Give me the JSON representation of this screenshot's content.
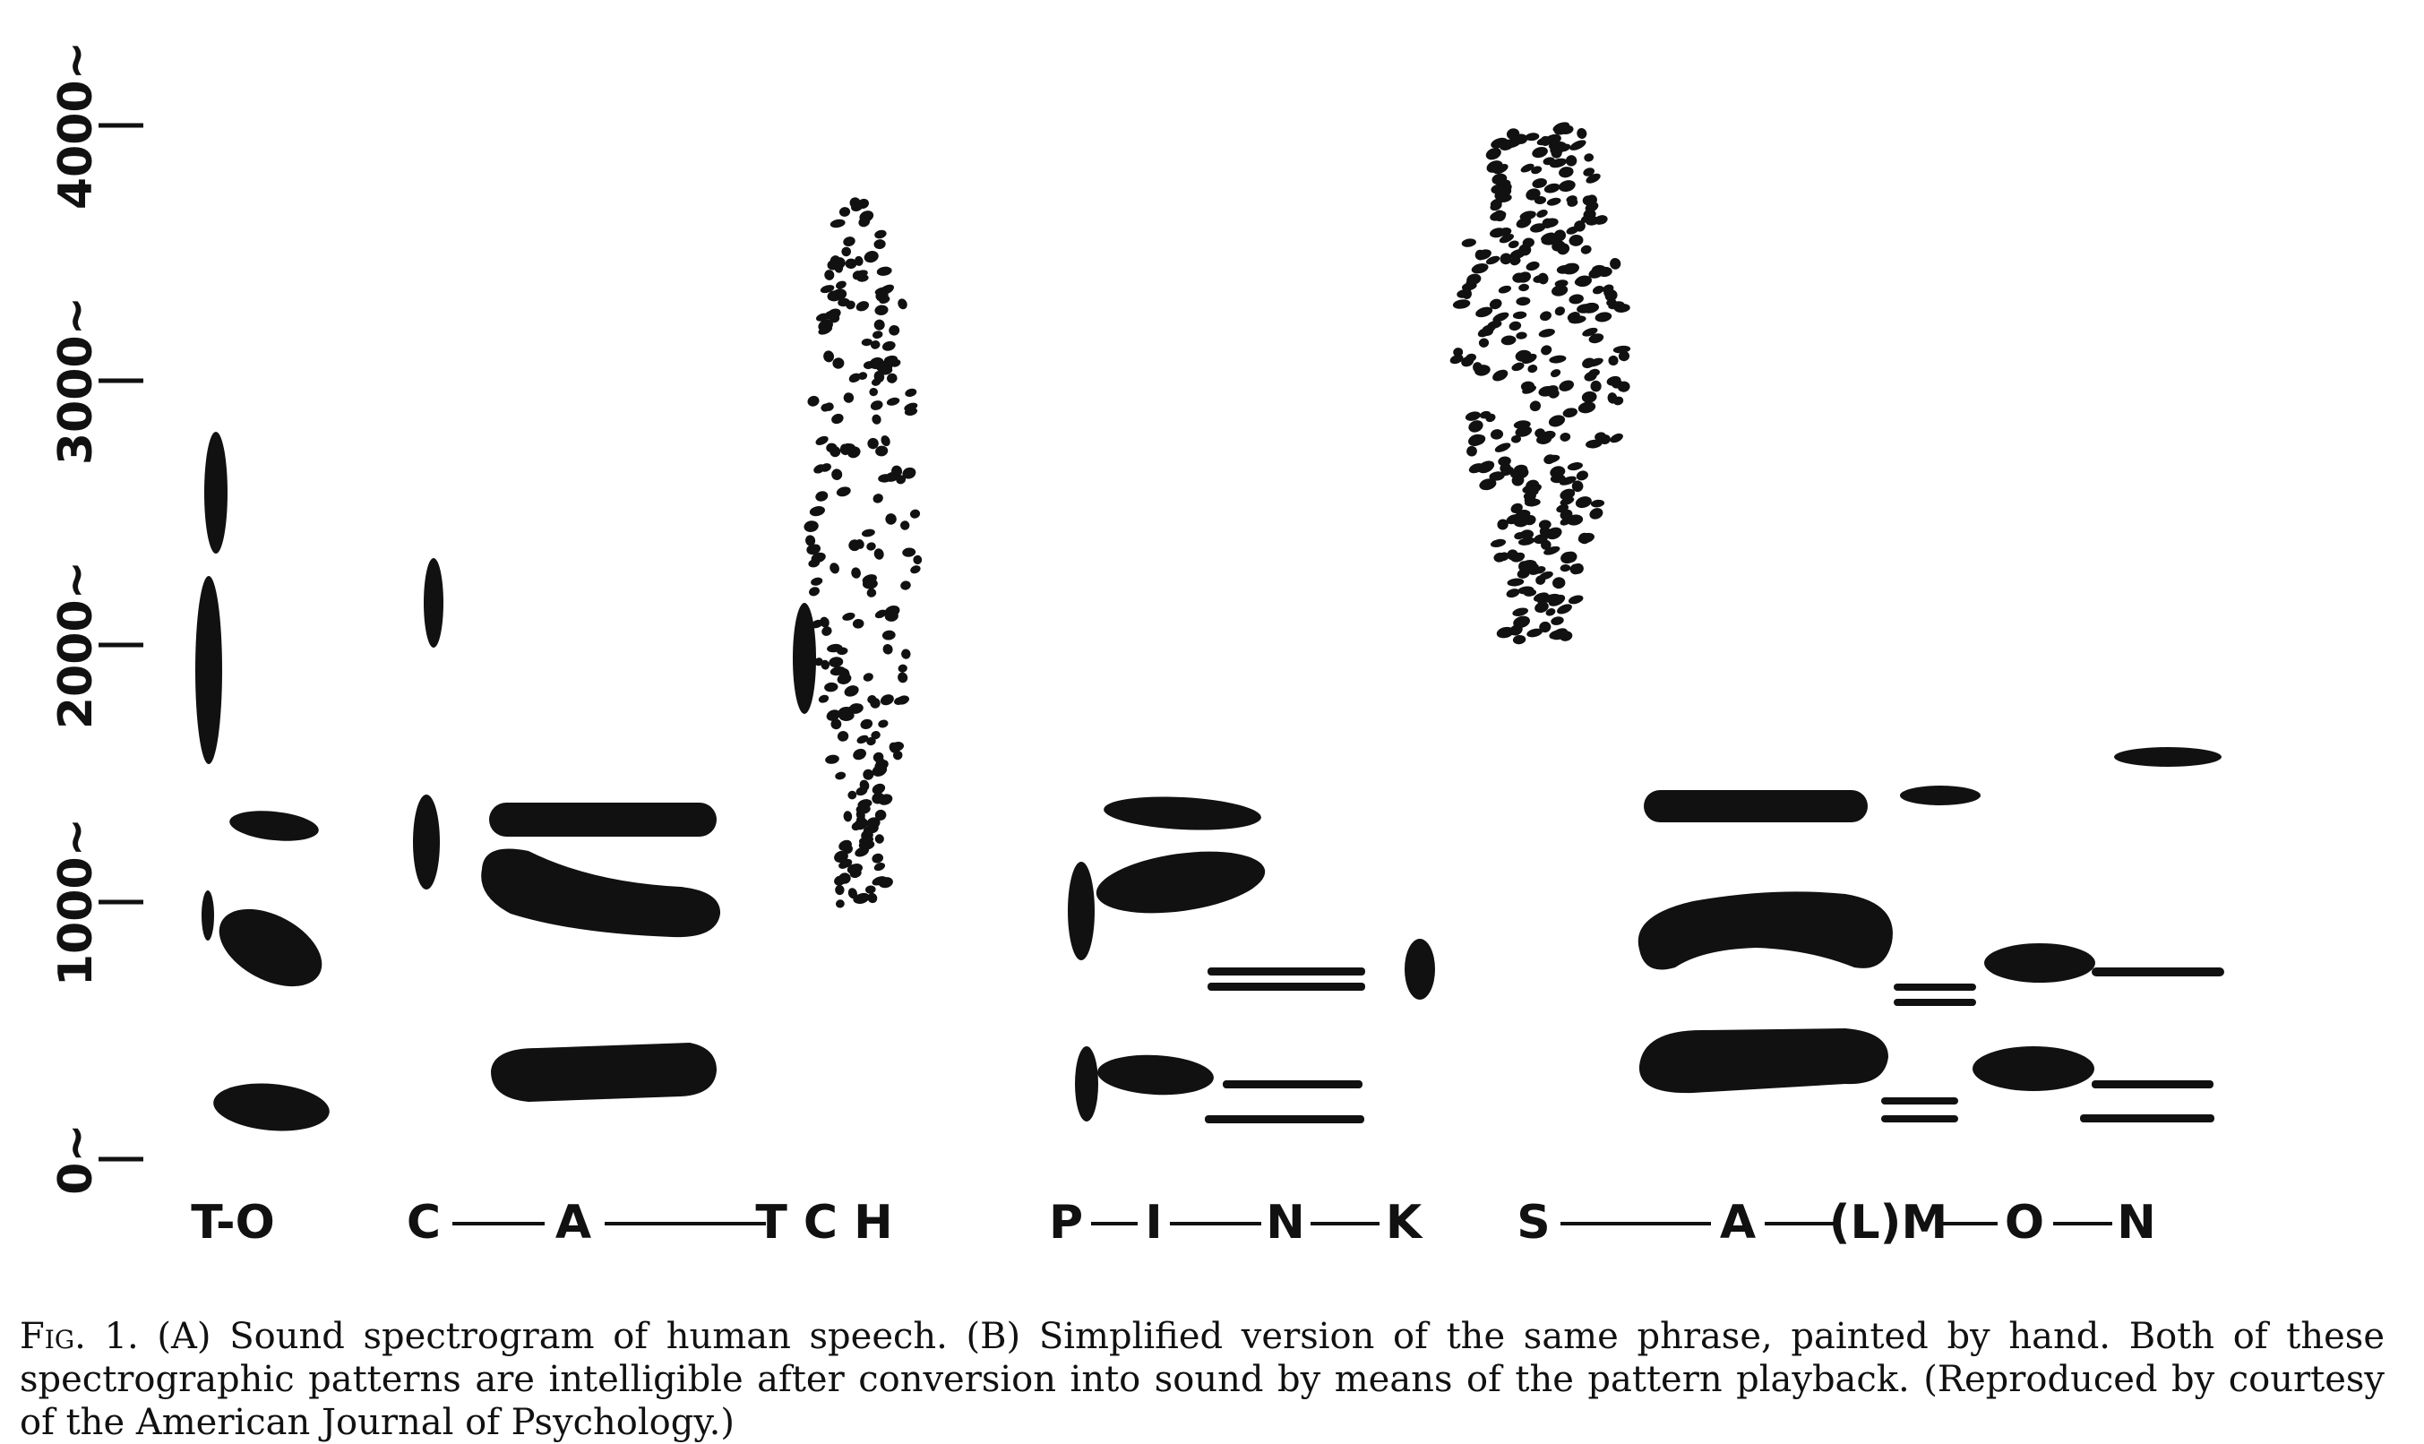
{
  "figure": {
    "y_axis": {
      "tick_labels": [
        "0~",
        "1000~",
        "2000~",
        "3000~",
        "4000~"
      ]
    },
    "segment_labels": [
      {
        "id": "to",
        "text": "T-O"
      },
      {
        "id": "catch-c",
        "text": "C"
      },
      {
        "id": "catch-a",
        "text": "A"
      },
      {
        "id": "catch-tch",
        "text": "T C H"
      },
      {
        "id": "pink-p",
        "text": "P"
      },
      {
        "id": "pink-i",
        "text": "I"
      },
      {
        "id": "pink-n",
        "text": "N"
      },
      {
        "id": "pink-k",
        "text": "K"
      },
      {
        "id": "salmon-s",
        "text": "S"
      },
      {
        "id": "salmon-a",
        "text": "A"
      },
      {
        "id": "salmon-lm",
        "text": "(L)M"
      },
      {
        "id": "salmon-o",
        "text": "O"
      },
      {
        "id": "salmon-n",
        "text": "N"
      }
    ]
  },
  "caption": {
    "label": "Fig. 1.",
    "text": " (A) Sound spectrogram of human speech. (B) Simplified version of the same phrase, painted by hand. Both of these spectrographic patterns are intelligible after conversion into sound by means of the pattern playback. (Reproduced by courtesy of the American Journal of Psychology.)"
  }
}
